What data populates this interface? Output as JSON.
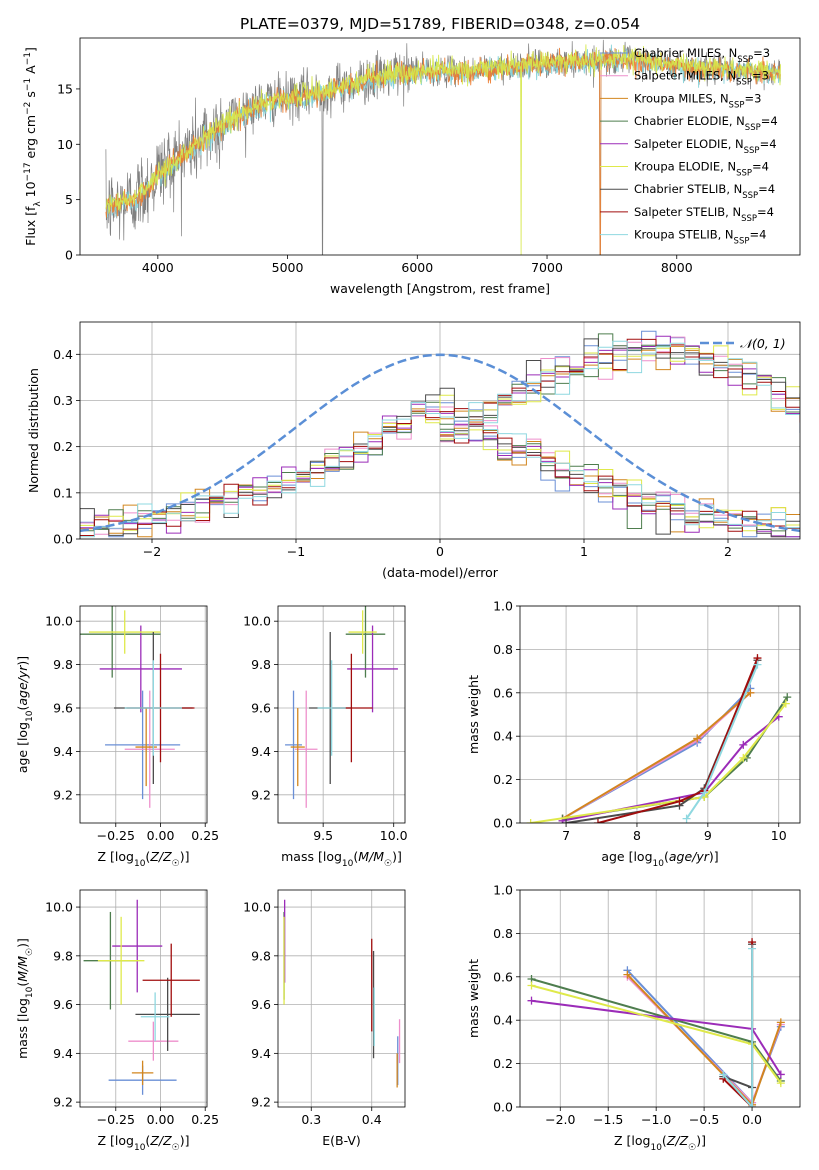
{
  "figure": {
    "title": "PLATE=0379, MJD=51789, FIBERID=0348, z=0.054"
  },
  "colors": {
    "observed": "#808080",
    "models": [
      "#6a8fd6",
      "#ee8fcc",
      "#d2861f",
      "#4e7d4e",
      "#9b2cb8",
      "#dfe94a",
      "#4b4b4b",
      "#a10d0d",
      "#8fd8e0"
    ],
    "model_lines": [
      "#7fd0d8",
      "#ec7a2c",
      "#d6e84a"
    ],
    "normal_curve": "#5b8fd6"
  },
  "legend": {
    "models": [
      {
        "name": "Chabrier MILES",
        "nssp": "3"
      },
      {
        "name": "Salpeter MILES",
        "nssp": "3"
      },
      {
        "name": "Kroupa MILES",
        "nssp": "3"
      },
      {
        "name": "Chabrier ELODIE",
        "nssp": "4"
      },
      {
        "name": "Salpeter ELODIE",
        "nssp": "4"
      },
      {
        "name": "Kroupa ELODIE",
        "nssp": "4"
      },
      {
        "name": "Chabrier STELIB",
        "nssp": "4"
      },
      {
        "name": "Salpeter STELIB",
        "nssp": "4"
      },
      {
        "name": "Kroupa STELIB",
        "nssp": "4"
      }
    ],
    "nssp_prefix": "N",
    "nssp_sub": "SSP",
    "normal_label": "𝒩(0, 1)"
  },
  "chart_data": [
    {
      "id": "spectrum",
      "type": "line",
      "xlabel": "wavelength [Angstrom, rest frame]",
      "ylabel": "Flux [f_λ 10^-17 erg cm^-2 s^-1 A^-1]",
      "xlim": [
        3400,
        8950
      ],
      "ylim": [
        0,
        19.6
      ],
      "xticks": [
        4000,
        5000,
        6000,
        7000,
        8000
      ],
      "yticks": [
        0,
        5,
        10,
        15
      ],
      "grid": false,
      "observed_anchors": [
        [
          3600,
          4.5
        ],
        [
          3650,
          4.2
        ],
        [
          3800,
          5.0
        ],
        [
          3900,
          6.0
        ],
        [
          4000,
          7.5
        ],
        [
          4200,
          9.2
        ],
        [
          4400,
          11.0
        ],
        [
          4600,
          12.8
        ],
        [
          4800,
          13.8
        ],
        [
          5000,
          14.2
        ],
        [
          5200,
          14.6
        ],
        [
          5500,
          15.5
        ],
        [
          5800,
          16.3
        ],
        [
          6100,
          16.7
        ],
        [
          6400,
          16.6
        ],
        [
          6700,
          17.1
        ],
        [
          7000,
          17.3
        ],
        [
          7300,
          17.5
        ],
        [
          7600,
          17.7
        ],
        [
          7900,
          17.3
        ],
        [
          8200,
          16.8
        ],
        [
          8500,
          16.6
        ],
        [
          8800,
          16.5
        ]
      ],
      "model_anchors": [
        [
          3600,
          4.4
        ],
        [
          3800,
          4.9
        ],
        [
          3900,
          5.8
        ],
        [
          4000,
          7.2
        ],
        [
          4200,
          9.0
        ],
        [
          4400,
          10.8
        ],
        [
          4600,
          12.5
        ],
        [
          4800,
          13.6
        ],
        [
          5000,
          14.1
        ],
        [
          5200,
          14.5
        ],
        [
          5500,
          15.4
        ],
        [
          5800,
          16.2
        ],
        [
          6100,
          16.6
        ],
        [
          6400,
          16.6
        ],
        [
          6700,
          17.0
        ],
        [
          7000,
          17.2
        ],
        [
          7300,
          17.5
        ],
        [
          7600,
          17.7
        ],
        [
          7900,
          17.3
        ],
        [
          8200,
          16.8
        ],
        [
          8500,
          16.6
        ],
        [
          8800,
          16.5
        ]
      ],
      "dips": [
        [
          5270,
          0
        ],
        [
          6800,
          0
        ],
        [
          7410,
          0
        ]
      ]
    },
    {
      "id": "residuals",
      "type": "area",
      "xlabel": "(data-model)/error",
      "ylabel": "Normed distribution",
      "xlim": [
        -2.5,
        2.5
      ],
      "ylim": [
        0,
        0.47
      ],
      "xticks": [
        -2,
        -1,
        0,
        1,
        2
      ],
      "yticks": [
        0,
        0.1,
        0.2,
        0.3,
        0.4
      ],
      "grid": true,
      "legend_position": "top-right",
      "bin_width": 0.1,
      "bin_start": -2.5,
      "histogram_base": [
        0.026,
        0.029,
        0.032,
        0.036,
        0.041,
        0.046,
        0.052,
        0.058,
        0.065,
        0.073,
        0.082,
        0.091,
        0.101,
        0.112,
        0.124,
        0.136,
        0.149,
        0.162,
        0.176,
        0.192,
        0.207,
        0.224,
        0.241,
        0.259,
        0.277,
        0.295,
        0.313,
        0.331,
        0.347,
        0.362,
        0.376,
        0.388,
        0.398,
        0.405,
        0.41,
        0.412,
        0.41,
        0.406,
        0.398,
        0.388,
        0.376,
        0.362,
        0.347,
        0.331,
        0.313,
        0.295,
        0.277,
        0.259,
        0.241,
        0.224
      ]
    },
    {
      "id": "age-vs-Z",
      "type": "scatter",
      "xlabel": "Z [log10(Z/Z☉)]",
      "ylabel": "age  [log10(age/yr)]",
      "xlim": [
        -0.45,
        0.26
      ],
      "ylim": [
        9.07,
        10.07
      ],
      "xticks": [
        -0.25,
        0.0,
        0.25
      ],
      "yticks": [
        9.2,
        9.4,
        9.6,
        9.8,
        10.0
      ],
      "grid": true,
      "points": [
        {
          "x": -0.1,
          "y": 9.43,
          "xerr": 0.21,
          "yerr": 0.25,
          "c": 0
        },
        {
          "x": -0.06,
          "y": 9.41,
          "xerr": 0.14,
          "yerr": 0.27,
          "c": 1
        },
        {
          "x": -0.08,
          "y": 9.42,
          "xerr": 0.06,
          "yerr": 0.18,
          "c": 2
        },
        {
          "x": -0.27,
          "y": 9.94,
          "xerr": 0.27,
          "yerr": 0.2,
          "c": 3
        },
        {
          "x": -0.11,
          "y": 9.78,
          "xerr": 0.23,
          "yerr": 0.2,
          "c": 4
        },
        {
          "x": -0.2,
          "y": 9.95,
          "xerr": 0.2,
          "yerr": 0.1,
          "c": 5
        },
        {
          "x": -0.04,
          "y": 9.6,
          "xerr": 0.22,
          "yerr": 0.35,
          "c": 6
        },
        {
          "x": 0.0,
          "y": 9.6,
          "xerr": 0.19,
          "yerr": 0.25,
          "c": 7
        },
        {
          "x": -0.04,
          "y": 9.6,
          "xerr": 0.16,
          "yerr": 0.22,
          "c": 8
        }
      ]
    },
    {
      "id": "age-vs-mass",
      "type": "scatter",
      "xlabel": "mass [log10(M/M☉)]",
      "ylabel": "",
      "xlim": [
        9.18,
        10.08
      ],
      "ylim": [
        9.07,
        10.07
      ],
      "xticks": [
        9.5,
        10.0
      ],
      "yticks": [
        9.2,
        9.4,
        9.6,
        9.8,
        10.0
      ],
      "grid": true,
      "points": [
        {
          "x": 9.29,
          "y": 9.43,
          "xerr": 0.06,
          "yerr": 0.25,
          "c": 0
        },
        {
          "x": 9.38,
          "y": 9.41,
          "xerr": 0.08,
          "yerr": 0.27,
          "c": 1
        },
        {
          "x": 9.32,
          "y": 9.42,
          "xerr": 0.05,
          "yerr": 0.18,
          "c": 2
        },
        {
          "x": 9.8,
          "y": 9.94,
          "xerr": 0.14,
          "yerr": 0.2,
          "c": 3
        },
        {
          "x": 9.85,
          "y": 9.78,
          "xerr": 0.18,
          "yerr": 0.2,
          "c": 4
        },
        {
          "x": 9.78,
          "y": 9.95,
          "xerr": 0.1,
          "yerr": 0.1,
          "c": 5
        },
        {
          "x": 9.55,
          "y": 9.6,
          "xerr": 0.15,
          "yerr": 0.35,
          "c": 6
        },
        {
          "x": 9.7,
          "y": 9.6,
          "xerr": 0.15,
          "yerr": 0.25,
          "c": 7
        },
        {
          "x": 9.56,
          "y": 9.6,
          "xerr": 0.1,
          "yerr": 0.22,
          "c": 8
        }
      ]
    },
    {
      "id": "weight-vs-age",
      "type": "line",
      "xlabel": "age  [log10(age/yr)]",
      "ylabel": "mass weight",
      "xlim": [
        6.35,
        10.3
      ],
      "ylim": [
        0,
        1.0
      ],
      "xticks": [
        7,
        8,
        9,
        10
      ],
      "yticks": [
        0,
        0.2,
        0.4,
        0.6,
        0.8,
        1.0
      ],
      "grid": true,
      "series": [
        {
          "c": 0,
          "points": [
            [
              6.95,
              0.02
            ],
            [
              8.85,
              0.37
            ],
            [
              9.6,
              0.62
            ]
          ]
        },
        {
          "c": 1,
          "points": [
            [
              6.95,
              0.02
            ],
            [
              8.85,
              0.38
            ],
            [
              9.6,
              0.6
            ]
          ]
        },
        {
          "c": 2,
          "points": [
            [
              6.95,
              0.02
            ],
            [
              8.85,
              0.39
            ],
            [
              9.6,
              0.6
            ]
          ]
        },
        {
          "c": 3,
          "points": [
            [
              6.95,
              0.02
            ],
            [
              8.95,
              0.12
            ],
            [
              9.55,
              0.3
            ],
            [
              10.12,
              0.58
            ]
          ]
        },
        {
          "c": 4,
          "points": [
            [
              6.95,
              0.01
            ],
            [
              8.95,
              0.14
            ],
            [
              9.5,
              0.36
            ],
            [
              10.0,
              0.49
            ]
          ]
        },
        {
          "c": 5,
          "points": [
            [
              6.5,
              0.0
            ],
            [
              8.95,
              0.12
            ],
            [
              9.5,
              0.3
            ],
            [
              10.1,
              0.55
            ]
          ]
        },
        {
          "c": 6,
          "points": [
            [
              7.0,
              0.0
            ],
            [
              8.6,
              0.08
            ],
            [
              8.95,
              0.16
            ],
            [
              9.7,
              0.75
            ]
          ]
        },
        {
          "c": 7,
          "points": [
            [
              7.45,
              0.0
            ],
            [
              8.6,
              0.1
            ],
            [
              8.95,
              0.15
            ],
            [
              9.7,
              0.76
            ]
          ]
        },
        {
          "c": 8,
          "points": [
            [
              8.7,
              0.02
            ],
            [
              8.95,
              0.14
            ],
            [
              9.7,
              0.73
            ]
          ]
        }
      ]
    },
    {
      "id": "mass-vs-Z",
      "type": "scatter",
      "xlabel": "Z [log10(Z/Z☉)]",
      "ylabel": "mass [log10(M/M☉)]",
      "xlim": [
        -0.45,
        0.26
      ],
      "ylim": [
        9.18,
        10.07
      ],
      "xticks": [
        -0.25,
        0.0,
        0.25
      ],
      "yticks": [
        9.2,
        9.4,
        9.6,
        9.8,
        10.0
      ],
      "grid": true,
      "points": [
        {
          "x": -0.1,
          "y": 9.29,
          "xerr": 0.19,
          "yerr": 0.06,
          "c": 0
        },
        {
          "x": -0.04,
          "y": 9.45,
          "xerr": 0.14,
          "yerr": 0.08,
          "c": 1
        },
        {
          "x": -0.1,
          "y": 9.32,
          "xerr": 0.06,
          "yerr": 0.05,
          "c": 2
        },
        {
          "x": -0.28,
          "y": 9.78,
          "xerr": 0.15,
          "yerr": 0.2,
          "c": 3
        },
        {
          "x": -0.13,
          "y": 9.84,
          "xerr": 0.14,
          "yerr": 0.19,
          "c": 4
        },
        {
          "x": -0.22,
          "y": 9.78,
          "xerr": 0.13,
          "yerr": 0.18,
          "c": 5
        },
        {
          "x": 0.04,
          "y": 9.56,
          "xerr": 0.18,
          "yerr": 0.15,
          "c": 6
        },
        {
          "x": 0.06,
          "y": 9.7,
          "xerr": 0.16,
          "yerr": 0.15,
          "c": 7
        },
        {
          "x": -0.03,
          "y": 9.55,
          "xerr": 0.08,
          "yerr": 0.1,
          "c": 8
        }
      ]
    },
    {
      "id": "mass-vs-EBV",
      "type": "scatter",
      "xlabel": "E(B-V)",
      "ylabel": "",
      "xlim": [
        0.245,
        0.455
      ],
      "ylim": [
        9.18,
        10.07
      ],
      "xticks": [
        0.3,
        0.4
      ],
      "yticks": [
        9.2,
        9.4,
        9.6,
        9.8,
        10.0
      ],
      "grid": true,
      "points": [
        {
          "x": 0.443,
          "y": 9.37,
          "xerr": 0,
          "yerr": 0.1,
          "c": 0
        },
        {
          "x": 0.446,
          "y": 9.45,
          "xerr": 0,
          "yerr": 0.09,
          "c": 1
        },
        {
          "x": 0.442,
          "y": 9.33,
          "xerr": 0,
          "yerr": 0.07,
          "c": 2
        },
        {
          "x": 0.255,
          "y": 9.8,
          "xerr": 0,
          "yerr": 0.18,
          "c": 3
        },
        {
          "x": 0.256,
          "y": 9.86,
          "xerr": 0,
          "yerr": 0.17,
          "c": 4
        },
        {
          "x": 0.255,
          "y": 9.78,
          "xerr": 0,
          "yerr": 0.18,
          "c": 5
        },
        {
          "x": 0.403,
          "y": 9.6,
          "xerr": 0,
          "yerr": 0.22,
          "c": 6
        },
        {
          "x": 0.4,
          "y": 9.68,
          "xerr": 0,
          "yerr": 0.19,
          "c": 7
        },
        {
          "x": 0.404,
          "y": 9.55,
          "xerr": 0,
          "yerr": 0.12,
          "c": 8
        }
      ]
    },
    {
      "id": "weight-vs-Z",
      "type": "line",
      "xlabel": "Z [log10(Z/Z☉)]",
      "ylabel": "mass weight",
      "xlim": [
        -2.42,
        0.5
      ],
      "ylim": [
        0,
        1.0
      ],
      "xticks": [
        -2.0,
        -1.5,
        -1.0,
        -0.5,
        0.0
      ],
      "yticks": [
        0,
        0.2,
        0.4,
        0.6,
        0.8,
        1.0
      ],
      "grid": true,
      "series": [
        {
          "c": 0,
          "points": [
            [
              -1.3,
              0.63
            ],
            [
              0.0,
              0.02
            ],
            [
              0.3,
              0.37
            ]
          ]
        },
        {
          "c": 1,
          "points": [
            [
              -1.3,
              0.6
            ],
            [
              0.0,
              0.02
            ],
            [
              0.3,
              0.38
            ]
          ]
        },
        {
          "c": 2,
          "points": [
            [
              -1.3,
              0.61
            ],
            [
              0.0,
              0.01
            ],
            [
              0.3,
              0.39
            ]
          ]
        },
        {
          "c": 3,
          "points": [
            [
              -2.3,
              0.59
            ],
            [
              0.0,
              0.3
            ],
            [
              0.3,
              0.12
            ]
          ]
        },
        {
          "c": 4,
          "points": [
            [
              -2.3,
              0.49
            ],
            [
              0.0,
              0.36
            ],
            [
              0.3,
              0.15
            ]
          ]
        },
        {
          "c": 5,
          "points": [
            [
              -2.3,
              0.56
            ],
            [
              0.0,
              0.29
            ],
            [
              0.3,
              0.11
            ]
          ]
        },
        {
          "c": 6,
          "points": [
            [
              -0.3,
              0.14
            ],
            [
              0.0,
              0.09
            ],
            [
              0.0,
              0.75
            ]
          ]
        },
        {
          "c": 7,
          "points": [
            [
              -0.3,
              0.13
            ],
            [
              0.0,
              0.0
            ],
            [
              0.0,
              0.76
            ]
          ]
        },
        {
          "c": 8,
          "points": [
            [
              -0.3,
              0.15
            ],
            [
              0.0,
              0.0
            ],
            [
              0.0,
              0.73
            ]
          ]
        }
      ]
    }
  ]
}
